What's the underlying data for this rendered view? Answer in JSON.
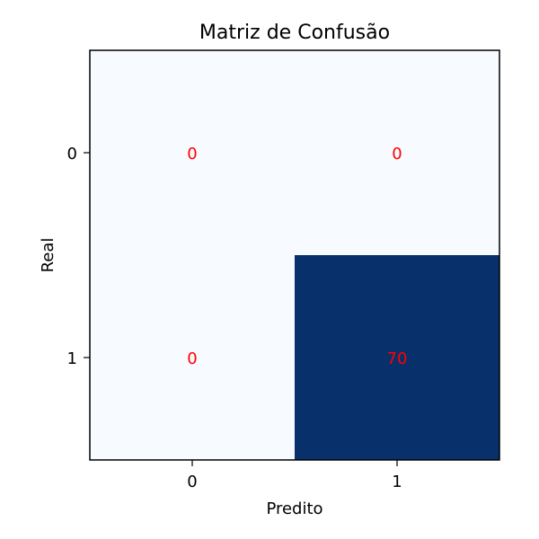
{
  "chart_data": {
    "type": "heatmap",
    "title": "Matriz de Confusão",
    "xlabel": "Predito",
    "ylabel": "Real",
    "x_categories": [
      "0",
      "1"
    ],
    "y_categories": [
      "0",
      "1"
    ],
    "values": [
      [
        0,
        0
      ],
      [
        0,
        70
      ]
    ],
    "colormap": "Blues",
    "low_color": "#f7fbff",
    "high_color": "#08306b",
    "annotation_color": "#ff0000",
    "grid": false
  }
}
